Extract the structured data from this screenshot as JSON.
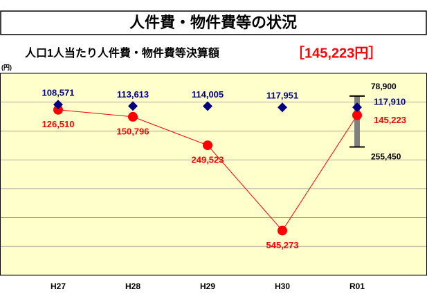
{
  "chart_data": {
    "type": "line",
    "title": "人件費・物件費等の状況",
    "subtitle": "人口1人当たり人件費・物件費等決算額",
    "highlight": "［145,223円］",
    "y_unit": "(円)",
    "categories": [
      "H27",
      "H28",
      "H29",
      "H30",
      "R01"
    ],
    "series": [
      {
        "color": "#ff0000",
        "marker": "circle",
        "line": true,
        "values": [
          126510,
          150796,
          249523,
          545273,
          145223
        ],
        "value_labels": [
          "126,510",
          "150,796",
          "249,523",
          "545,273",
          "145,223"
        ]
      },
      {
        "color": "#000080",
        "marker": "diamond",
        "line": false,
        "values": [
          108571,
          113613,
          114005,
          117951,
          117910
        ],
        "value_labels": [
          "108,571",
          "113,613",
          "114,005",
          "117,951",
          "117,910"
        ]
      }
    ],
    "range": {
      "category_index": 4,
      "color": "#808080",
      "values": [
        78900,
        255450
      ],
      "value_labels": [
        "78,900",
        "255,450"
      ]
    },
    "ylim": [
      0,
      700000
    ],
    "yticks": [
      100000,
      200000,
      300000,
      400000,
      500000,
      600000
    ],
    "y_inverted": true,
    "grid": true
  }
}
